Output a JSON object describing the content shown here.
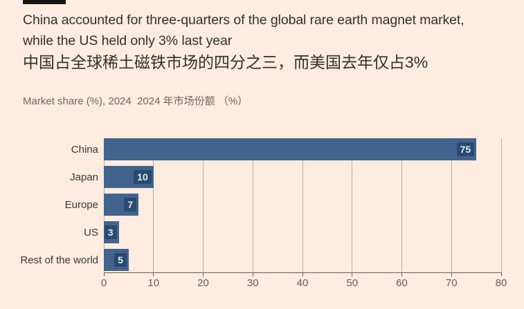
{
  "page": {
    "background_color": "#fdecdf"
  },
  "header": {
    "title_lines": [
      "China accounted for three-quarters of the global rare earth magnet market,",
      "while the US held only 3% last year"
    ],
    "title_zh": "中国占全球稀土磁铁市场的四分之三，而美国去年仅占3%",
    "subtitle": "Market share (%), 2024  2024 年市场份额 （%）"
  },
  "chart_data": {
    "type": "bar",
    "orientation": "horizontal",
    "title": "China accounted for three-quarters of the global rare earth magnet market, while the US held only 3% last year",
    "subtitle": "Market share (%), 2024",
    "categories": [
      "China",
      "Japan",
      "Europe",
      "US",
      "Rest of the world"
    ],
    "values": [
      75,
      10,
      7,
      3,
      5
    ],
    "xlim": [
      0,
      80
    ],
    "x_ticks": [
      0,
      10,
      20,
      30,
      40,
      50,
      60,
      70,
      80
    ],
    "grid": "vertical",
    "legend": "none",
    "colors": {
      "bar": "#41648f",
      "value_label_bg": "#2a4a6e",
      "value_label_text": "#dcebf7",
      "gridline": "#b9aea4",
      "axis_line": "#66605c",
      "tick_label": "#66605c",
      "category_label": "#3c3731"
    }
  }
}
